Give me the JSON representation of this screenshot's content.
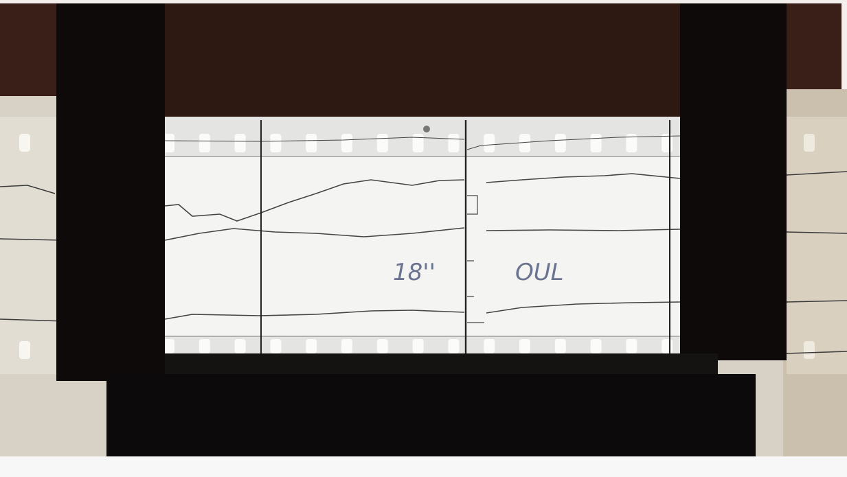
{
  "annotations": {
    "duration": "18''",
    "station": "OUL"
  }
}
